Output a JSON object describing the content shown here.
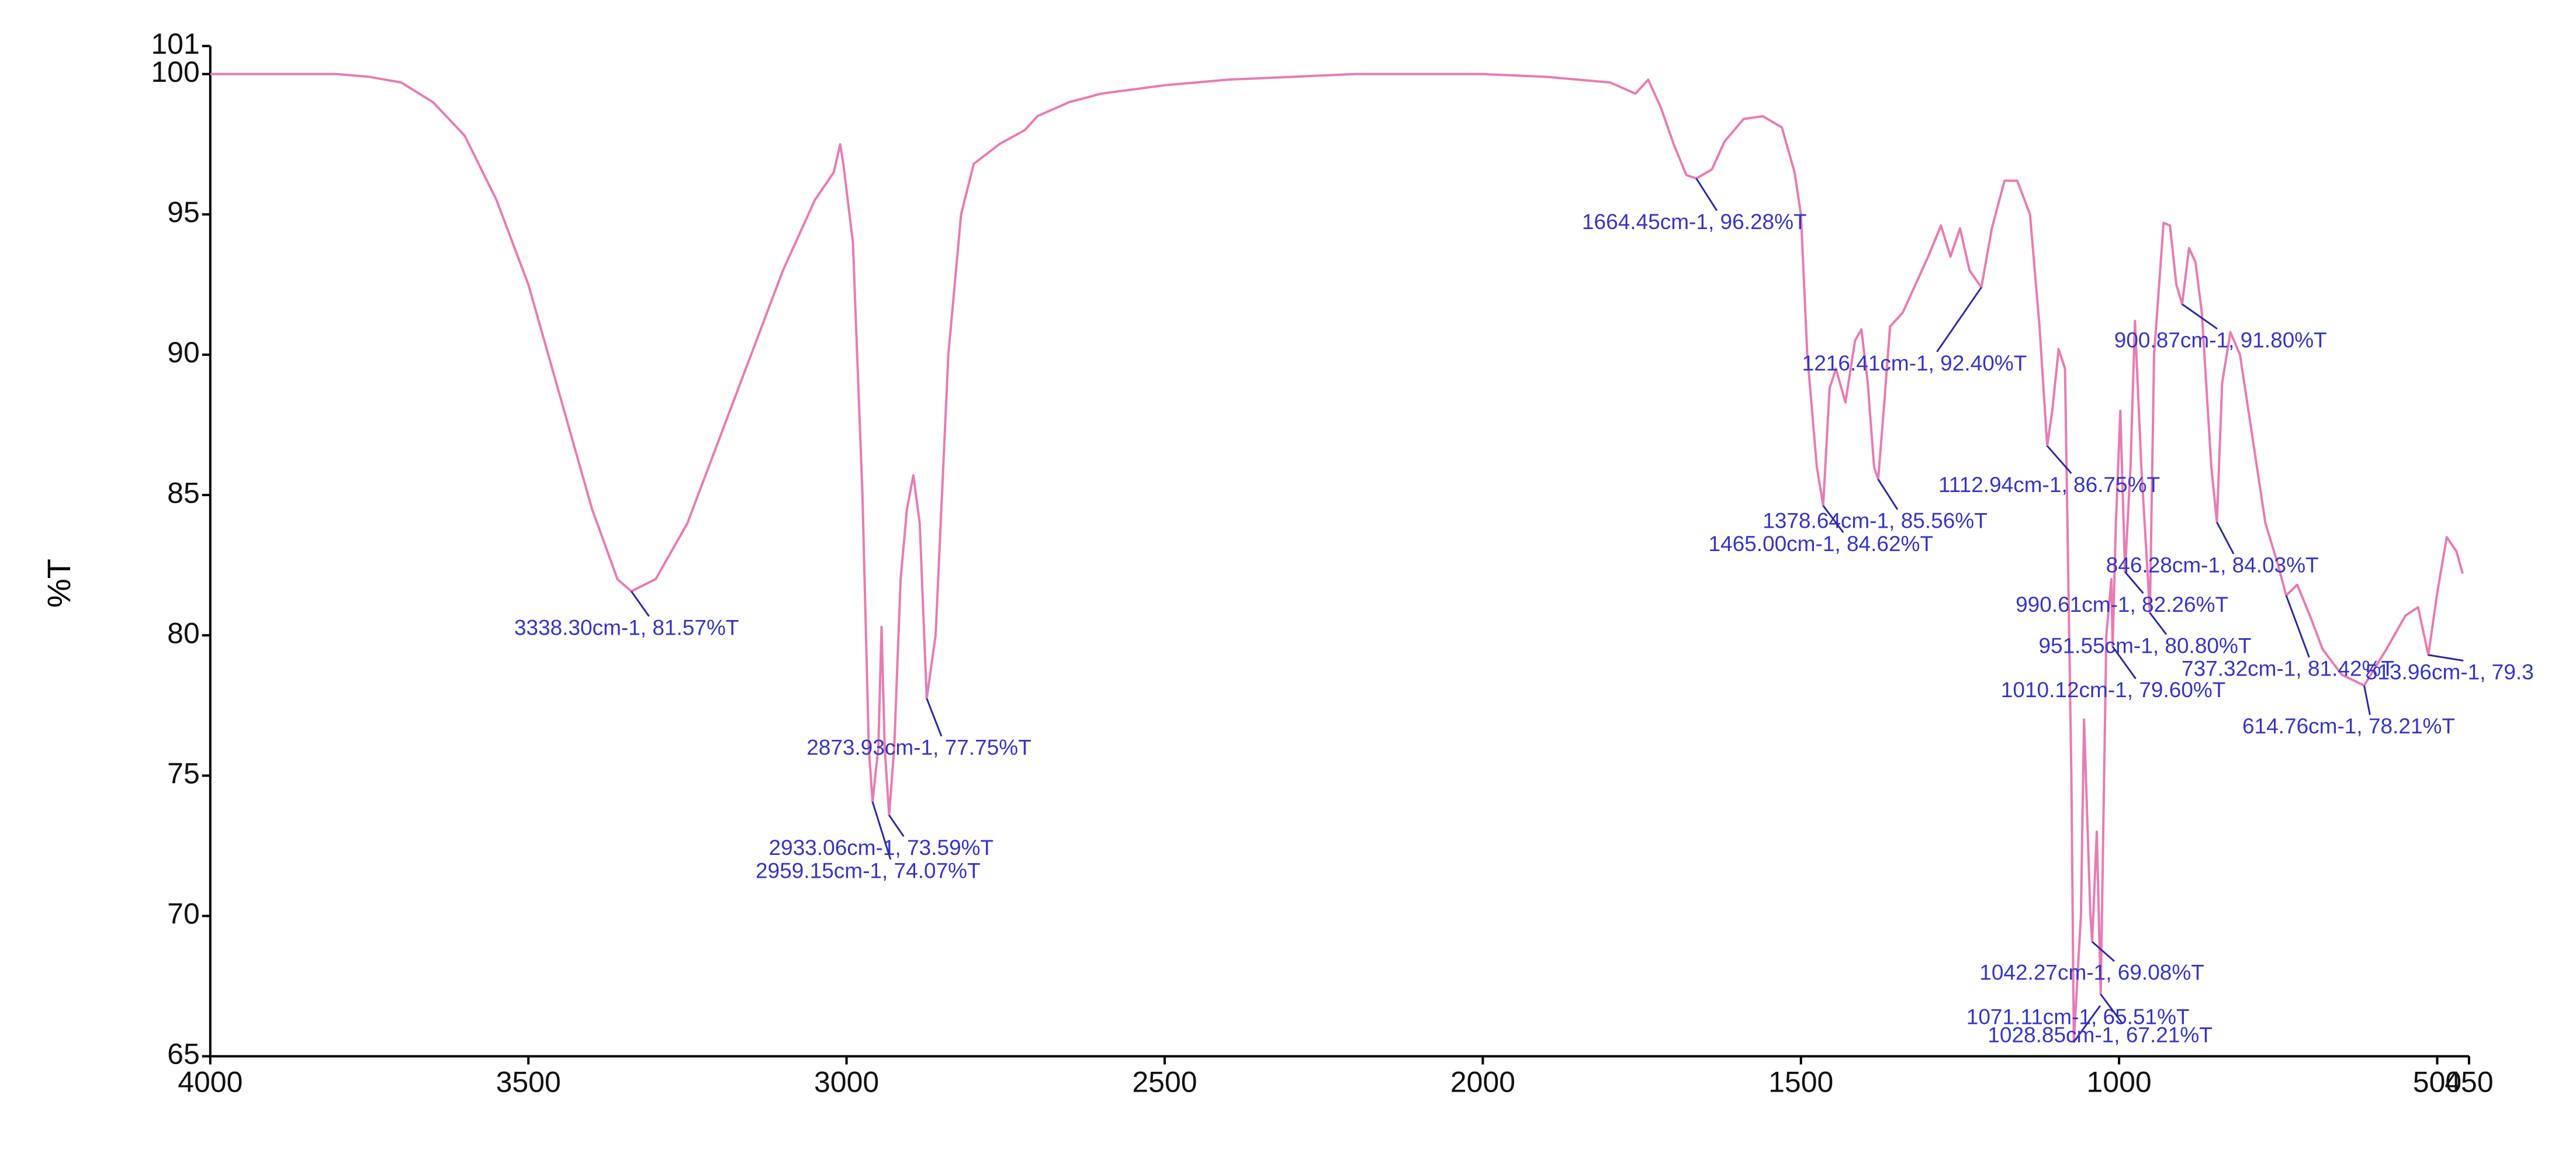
{
  "chart_data": {
    "type": "line",
    "y_label": "%T",
    "color": "#e87bb3",
    "xlim": [
      4000,
      450
    ],
    "ylim": [
      65,
      101
    ],
    "xticks": [
      4000,
      3500,
      3000,
      2500,
      2000,
      1500,
      1000,
      500,
      450
    ],
    "yticks": [
      65,
      70,
      75,
      80,
      85,
      90,
      95,
      100,
      101
    ],
    "x": [
      4000,
      3900,
      3800,
      3750,
      3700,
      3650,
      3600,
      3550,
      3500,
      3450,
      3400,
      3360,
      3338.3,
      3300,
      3250,
      3200,
      3150,
      3100,
      3050,
      3020,
      3010,
      3005,
      2990,
      2975,
      2965,
      2959.15,
      2950,
      2945,
      2940,
      2933.06,
      2925,
      2915,
      2905,
      2895,
      2885,
      2873.93,
      2860,
      2840,
      2820,
      2800,
      2760,
      2720,
      2700,
      2650,
      2600,
      2500,
      2400,
      2300,
      2200,
      2100,
      2000,
      1900,
      1800,
      1760,
      1740,
      1720,
      1700,
      1680,
      1664.45,
      1640,
      1620,
      1590,
      1560,
      1530,
      1510,
      1500,
      1490,
      1475,
      1465,
      1455,
      1445,
      1430,
      1415,
      1405,
      1395,
      1385,
      1378.64,
      1370,
      1360,
      1340,
      1320,
      1300,
      1280,
      1265,
      1250,
      1235,
      1216.41,
      1200,
      1180,
      1160,
      1140,
      1125,
      1112.94,
      1105,
      1095,
      1085,
      1075,
      1071.11,
      1060,
      1055,
      1045,
      1042.27,
      1035,
      1028.85,
      1020,
      1012,
      1010.12,
      1005,
      998,
      990.61,
      982,
      975,
      965,
      951.55,
      945,
      930,
      920,
      910,
      900.87,
      890,
      880,
      870,
      855,
      846.28,
      838,
      825,
      810,
      790,
      770,
      750,
      737.32,
      720,
      700,
      680,
      650,
      614.76,
      580,
      550,
      530,
      513.96,
      500,
      485,
      470,
      460
    ],
    "values": [
      100.0,
      100.0,
      100.0,
      99.9,
      99.7,
      99.0,
      97.8,
      95.5,
      92.5,
      88.5,
      84.5,
      82.0,
      81.57,
      82.0,
      84.0,
      87.0,
      90.0,
      93.0,
      95.5,
      96.5,
      97.5,
      96.8,
      94.0,
      85.0,
      76.0,
      74.07,
      76.0,
      80.3,
      76.0,
      73.59,
      76.0,
      82.0,
      84.5,
      85.7,
      84.0,
      77.75,
      80.0,
      90.0,
      95.0,
      96.8,
      97.5,
      98.0,
      98.5,
      99.0,
      99.3,
      99.6,
      99.8,
      99.9,
      100.0,
      100.0,
      100.0,
      99.9,
      99.7,
      99.3,
      99.8,
      98.8,
      97.5,
      96.4,
      96.28,
      96.6,
      97.6,
      98.4,
      98.5,
      98.1,
      96.5,
      95.0,
      90.0,
      86.0,
      84.62,
      88.8,
      89.5,
      88.3,
      90.5,
      90.9,
      89.0,
      86.0,
      85.56,
      88.0,
      91.0,
      91.5,
      92.5,
      93.5,
      94.6,
      93.5,
      94.5,
      93.0,
      92.4,
      94.5,
      96.2,
      96.2,
      95.0,
      91.0,
      86.75,
      88.0,
      90.2,
      89.5,
      75.0,
      65.51,
      70.0,
      77.0,
      70.0,
      69.08,
      73.0,
      67.21,
      80.0,
      82.0,
      79.6,
      84.0,
      88.0,
      82.26,
      86.0,
      91.2,
      86.0,
      80.8,
      90.0,
      94.7,
      94.6,
      92.5,
      91.8,
      93.8,
      93.3,
      91.5,
      86.0,
      84.03,
      89.0,
      90.8,
      90.0,
      87.0,
      84.0,
      82.5,
      81.42,
      81.8,
      80.7,
      79.5,
      78.6,
      78.21,
      79.5,
      80.7,
      81.0,
      79.3,
      81.5,
      83.5,
      83.0,
      82.2
    ],
    "annotations": [
      {
        "label": "3338.30cm-1, 81.57%T",
        "x": 3338.3,
        "y": 81.57
      },
      {
        "label": "2873.93cm-1, 77.75%T",
        "x": 2873.93,
        "y": 77.75
      },
      {
        "label": "2933.06cm-1, 73.59%T",
        "x": 2933.06,
        "y": 73.59
      },
      {
        "label": "2959.15cm-1, 74.07%T",
        "x": 2959.15,
        "y": 74.07
      },
      {
        "label": "1664.45cm-1, 96.28%T",
        "x": 1664.45,
        "y": 96.28
      },
      {
        "label": "1216.41cm-1, 92.40%T",
        "x": 1216.41,
        "y": 92.4
      },
      {
        "label": "900.87cm-1, 91.80%T",
        "x": 900.87,
        "y": 91.8
      },
      {
        "label": "1112.94cm-1, 86.75%T",
        "x": 1112.94,
        "y": 86.75
      },
      {
        "label": "1378.64cm-1, 85.56%T",
        "x": 1378.64,
        "y": 85.56
      },
      {
        "label": "1465.00cm-1, 84.62%T",
        "x": 1465.0,
        "y": 84.62
      },
      {
        "label": "846.28cm-1, 84.03%T",
        "x": 846.28,
        "y": 84.03
      },
      {
        "label": "990.61cm-1, 82.26%T",
        "x": 990.61,
        "y": 82.26
      },
      {
        "label": "951.55cm-1, 80.80%T",
        "x": 951.55,
        "y": 80.8
      },
      {
        "label": "737.32cm-1, 81.42%T",
        "x": 737.32,
        "y": 81.42
      },
      {
        "label": "513.96cm-1, 79.3",
        "x": 513.96,
        "y": 79.3
      },
      {
        "label": "1010.12cm-1, 79.60%T",
        "x": 1010.12,
        "y": 79.6
      },
      {
        "label": "614.76cm-1, 78.21%T",
        "x": 614.76,
        "y": 78.21
      },
      {
        "label": "1042.27cm-1, 69.08%T",
        "x": 1042.27,
        "y": 69.08
      },
      {
        "label": "1071.11cm-1, 65.51%T",
        "x": 1071.11,
        "y": 65.51
      },
      {
        "label": "1028.85cm-1, 67.21%T",
        "x": 1028.85,
        "y": 67.21
      }
    ]
  }
}
